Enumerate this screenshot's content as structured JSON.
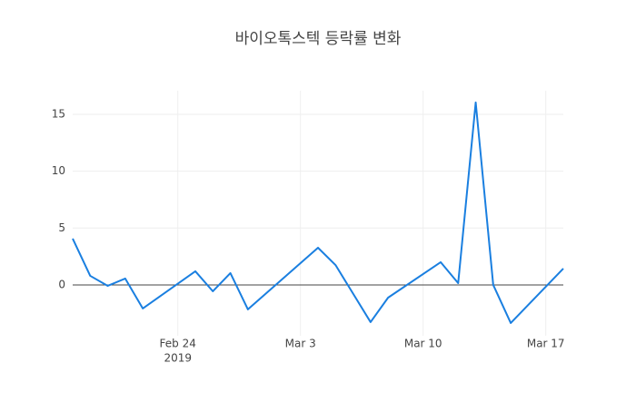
{
  "chart_data": {
    "type": "line",
    "title": "바이오톡스텍 등락률 변화",
    "x": [
      "2019-02-18",
      "2019-02-19",
      "2019-02-20",
      "2019-02-21",
      "2019-02-22",
      "2019-02-25",
      "2019-02-26",
      "2019-02-27",
      "2019-02-28",
      "2019-03-04",
      "2019-03-05",
      "2019-03-07",
      "2019-03-08",
      "2019-03-11",
      "2019-03-12",
      "2019-03-13",
      "2019-03-14",
      "2019-03-15",
      "2019-03-18"
    ],
    "series": [
      {
        "color": "#1a7fe0",
        "values": [
          4.07,
          0.8,
          -0.08,
          0.56,
          -2.07,
          1.2,
          -0.56,
          1.04,
          -2.15,
          3.27,
          1.75,
          -3.27,
          -1.12,
          2.0,
          0.16,
          16.04,
          0,
          -3.35,
          1.44
        ]
      }
    ],
    "xlim": [
      "2019-02-18",
      "2019-03-18"
    ],
    "xticks": [
      {
        "value": "2019-02-24",
        "label": "Feb 24"
      },
      {
        "value": "2019-03-03",
        "label": "Mar 3"
      },
      {
        "value": "2019-03-10",
        "label": "Mar 10"
      },
      {
        "value": "2019-03-17",
        "label": "Mar 17"
      }
    ],
    "xtick_year": "2019",
    "ylim": [
      -4.47,
      17.07
    ],
    "yticks": [
      0,
      5,
      10,
      15
    ],
    "grid": true
  }
}
